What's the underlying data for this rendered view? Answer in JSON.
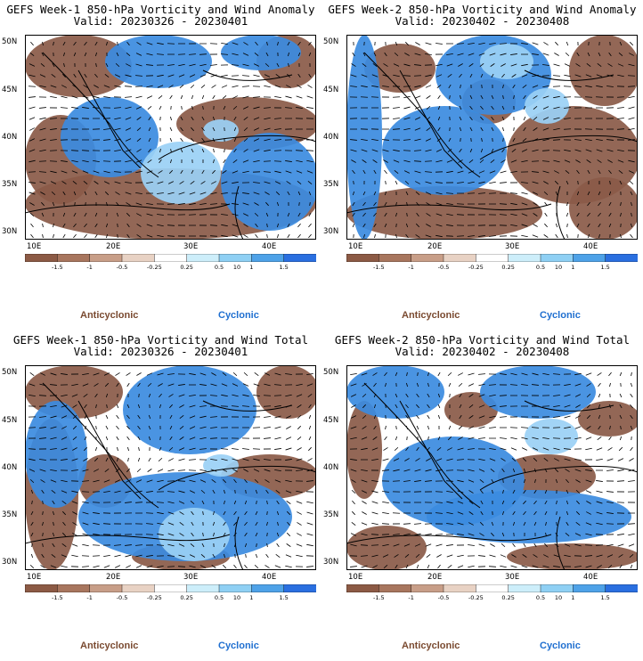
{
  "panels": [
    {
      "title": "GEFS Week-1 850-hPa Vorticity and Wind Anomaly",
      "valid": "Valid: 20230326 - 20230401"
    },
    {
      "title": "GEFS Week-2 850-hPa Vorticity and Wind Anomaly",
      "valid": "Valid: 20230402 - 20230408"
    },
    {
      "title": "GEFS Week-1 850-hPa Vorticity and Wind Total",
      "valid": "Valid: 20230326 - 20230401"
    },
    {
      "title": "GEFS Week-2 850-hPa Vorticity and Wind Total",
      "valid": "Valid: 20230402 - 20230408"
    }
  ],
  "axes": {
    "lat_labels": [
      "50N",
      "45N",
      "40N",
      "35N",
      "30N"
    ],
    "lon_labels": [
      "10E",
      "20E",
      "30E",
      "40E"
    ]
  },
  "colorbar": {
    "labels": [
      "-1.5",
      "-1",
      "-0.5",
      "-0.25",
      "0.25",
      "0.5",
      "1",
      "1.5"
    ],
    "units_mark": "10",
    "colors": [
      "#8c5a45",
      "#a8765e",
      "#c89e88",
      "#e8d2c4",
      "#ffffff",
      "#cdeefa",
      "#8fd0f4",
      "#4ea2e8",
      "#2a6fe0"
    ]
  },
  "legend": {
    "anticyclonic": "Anticyclonic",
    "cyclonic": "Cyclonic"
  },
  "colors": {
    "anticyclonic": "#7a4a30",
    "cyclonic": "#1f6fd0",
    "brown": "#8a5a48",
    "blue": "#3b8be0",
    "lightblue": "#9ad0f5"
  }
}
